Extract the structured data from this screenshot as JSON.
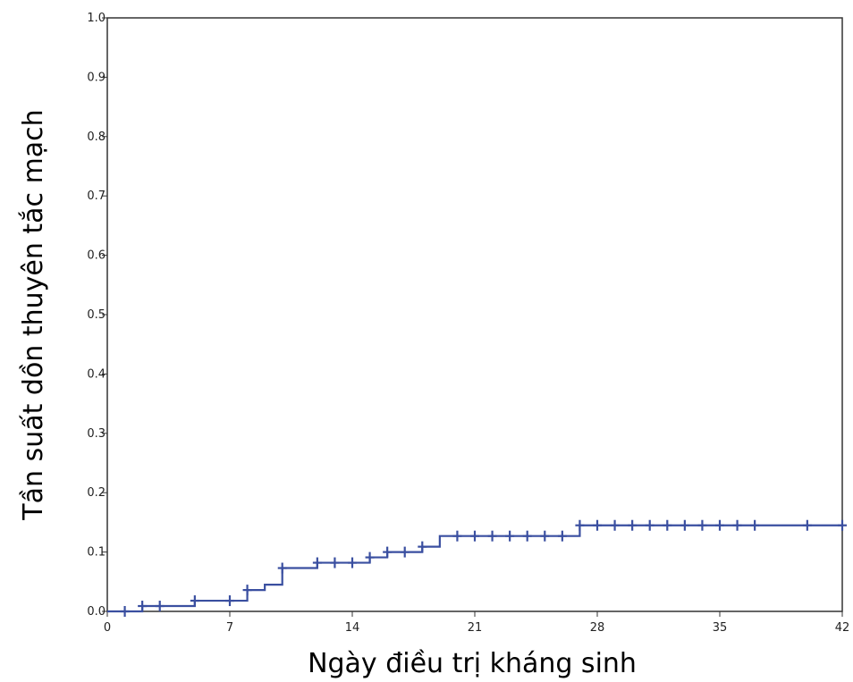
{
  "chart_data": {
    "type": "line",
    "title": "",
    "xlabel": "Ngày điều trị kháng sinh",
    "ylabel": "Tần suất dồn thuyên tắc mạch",
    "xlim": [
      0,
      42
    ],
    "ylim": [
      0,
      1.0
    ],
    "x_ticks": [
      0,
      7,
      14,
      21,
      28,
      35,
      42
    ],
    "x_tick_labels": [
      "0",
      "7",
      "14",
      "21",
      "28",
      "35",
      "42"
    ],
    "y_ticks": [
      0.0,
      0.1,
      0.2,
      0.3,
      0.4,
      0.5,
      0.6,
      0.7,
      0.8,
      0.9,
      1.0
    ],
    "y_tick_labels": [
      "0.0",
      "0.1",
      "0.2",
      "0.3",
      "0.4",
      "0.5",
      "0.6",
      "0.7",
      "0.8",
      "0.9",
      "1.0"
    ],
    "grid": false,
    "legend": "none",
    "line_color": "#3a4fa0",
    "step_curve": {
      "x": [
        0,
        2,
        5,
        8,
        9,
        10,
        12,
        15,
        16,
        18,
        19,
        27,
        42
      ],
      "y": [
        0.0,
        0.009,
        0.018,
        0.036,
        0.045,
        0.073,
        0.082,
        0.091,
        0.1,
        0.109,
        0.127,
        0.145,
        0.145
      ]
    },
    "censored": {
      "x": [
        1,
        2,
        3,
        5,
        7,
        8,
        10,
        12,
        13,
        14,
        15,
        16,
        17,
        18,
        20,
        21,
        22,
        23,
        24,
        25,
        26,
        27,
        28,
        29,
        30,
        31,
        32,
        33,
        34,
        35,
        36,
        37,
        40,
        42
      ],
      "y": [
        0.0,
        0.009,
        0.009,
        0.018,
        0.018,
        0.036,
        0.073,
        0.082,
        0.082,
        0.082,
        0.091,
        0.1,
        0.1,
        0.109,
        0.127,
        0.127,
        0.127,
        0.127,
        0.127,
        0.127,
        0.127,
        0.145,
        0.145,
        0.145,
        0.145,
        0.145,
        0.145,
        0.145,
        0.145,
        0.145,
        0.145,
        0.145,
        0.145,
        0.145
      ]
    }
  }
}
